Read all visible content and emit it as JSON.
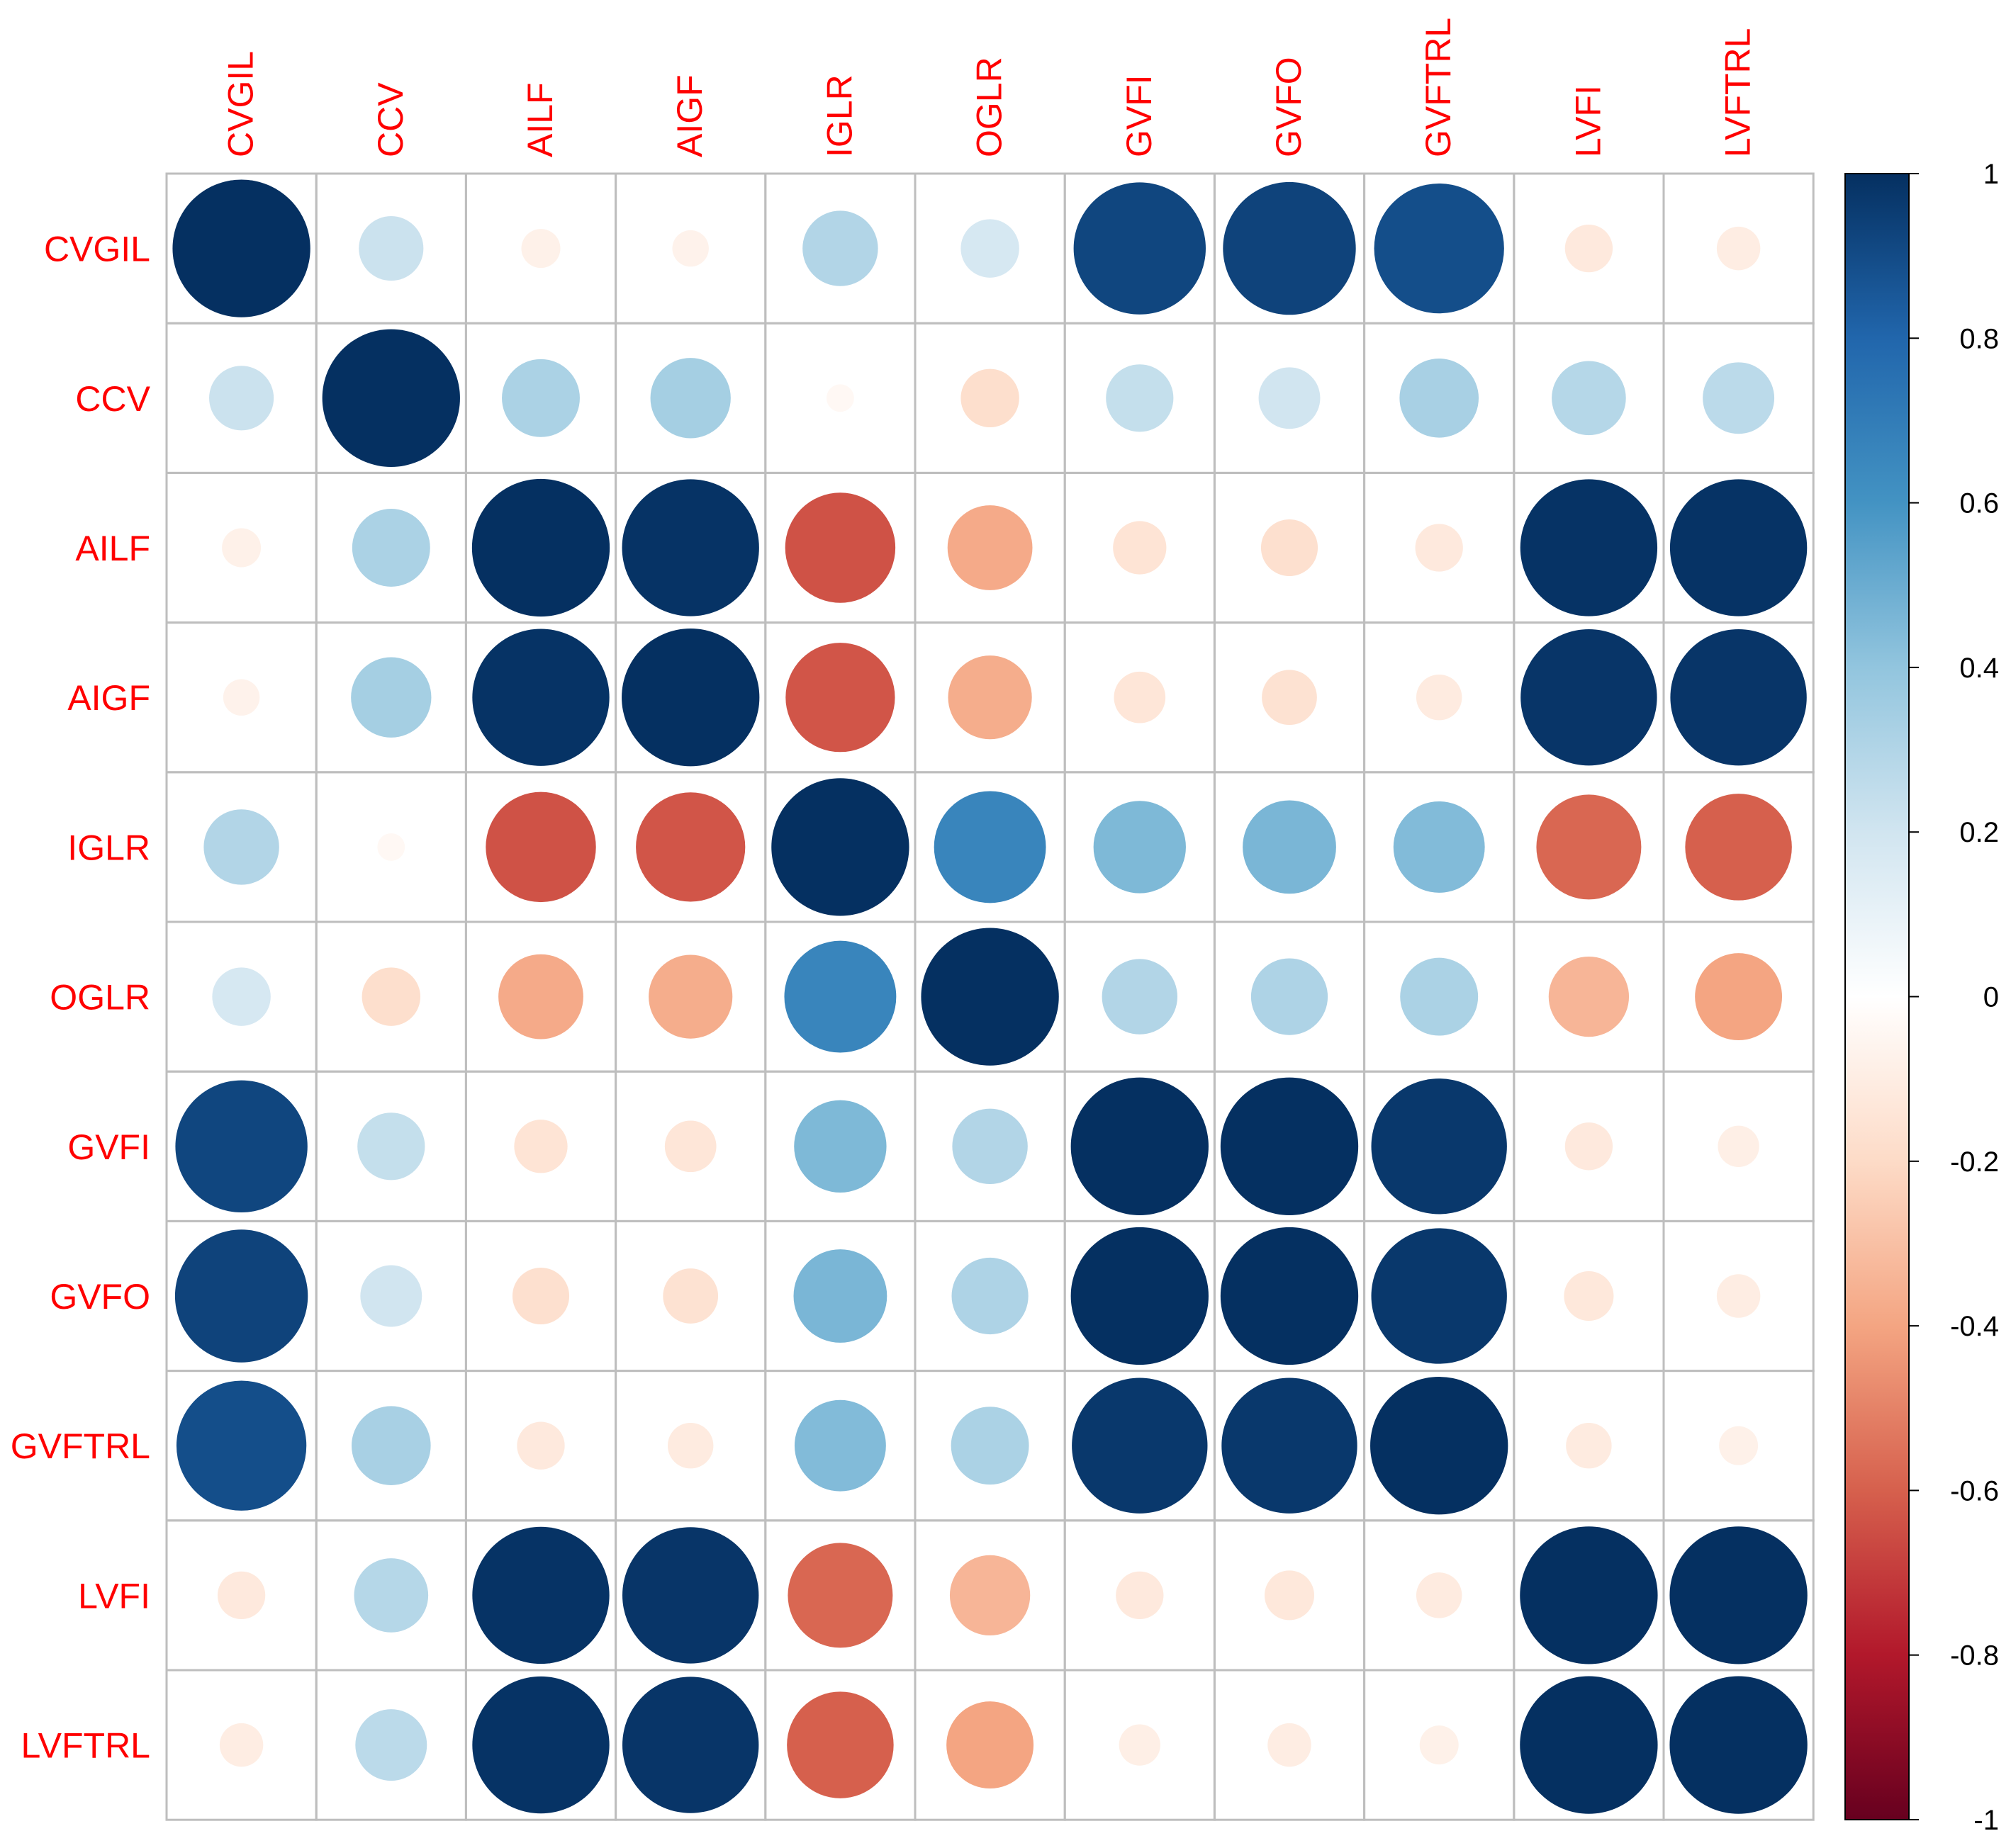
{
  "chart_data": {
    "type": "heatmap",
    "subtype": "correlation-circle-matrix",
    "title": "",
    "variables": [
      "CVGIL",
      "CCV",
      "AILF",
      "AIGF",
      "IGLR",
      "OGLR",
      "GVFI",
      "GVFO",
      "GVFTRL",
      "LVFI",
      "LVFTRL"
    ],
    "matrix": [
      [
        1.0,
        0.22,
        -0.08,
        -0.07,
        0.3,
        0.18,
        0.92,
        0.93,
        0.89,
        -0.12,
        -0.1
      ],
      [
        0.22,
        1.0,
        0.32,
        0.34,
        -0.04,
        -0.18,
        0.24,
        0.2,
        0.33,
        0.29,
        0.27
      ],
      [
        -0.08,
        0.32,
        1.0,
        0.99,
        -0.64,
        -0.38,
        -0.15,
        -0.17,
        -0.12,
        0.99,
        0.99
      ],
      [
        -0.07,
        0.34,
        0.99,
        1.0,
        -0.63,
        -0.37,
        -0.14,
        -0.16,
        -0.11,
        0.98,
        0.98
      ],
      [
        0.3,
        -0.04,
        -0.64,
        -0.63,
        1.0,
        0.66,
        0.45,
        0.46,
        0.44,
        -0.58,
        -0.6
      ],
      [
        0.18,
        -0.18,
        -0.38,
        -0.37,
        0.66,
        1.0,
        0.3,
        0.31,
        0.32,
        -0.34,
        -0.4
      ],
      [
        0.92,
        0.24,
        -0.15,
        -0.14,
        0.45,
        0.3,
        1.0,
        1.0,
        0.97,
        -0.12,
        -0.09
      ],
      [
        0.93,
        0.2,
        -0.17,
        -0.16,
        0.46,
        0.31,
        1.0,
        1.0,
        0.97,
        -0.13,
        -0.1
      ],
      [
        0.89,
        0.33,
        -0.12,
        -0.11,
        0.44,
        0.32,
        0.97,
        0.97,
        1.0,
        -0.11,
        -0.08
      ],
      [
        -0.12,
        0.29,
        0.99,
        0.98,
        -0.58,
        -0.34,
        -0.12,
        -0.13,
        -0.11,
        1.0,
        1.0
      ],
      [
        -0.1,
        0.27,
        0.99,
        0.98,
        -0.6,
        -0.4,
        -0.09,
        -0.1,
        -0.08,
        1.0,
        1.0
      ]
    ],
    "color_scale": {
      "range": [
        -1,
        1
      ],
      "ticks": [
        "1",
        "0.8",
        "0.6",
        "0.4",
        "0.2",
        "0",
        "-0.2",
        "-0.4",
        "-0.6",
        "-0.8",
        "-1"
      ],
      "stops": [
        "#67001F",
        "#B2182B",
        "#D6604D",
        "#F4A582",
        "#FDDBC7",
        "#FFFFFF",
        "#D1E5F0",
        "#92C5DE",
        "#4393C3",
        "#2166AC",
        "#053061"
      ]
    },
    "label_color": "#FF0000",
    "grid_color": "#BEBEBE",
    "legend": "right"
  }
}
